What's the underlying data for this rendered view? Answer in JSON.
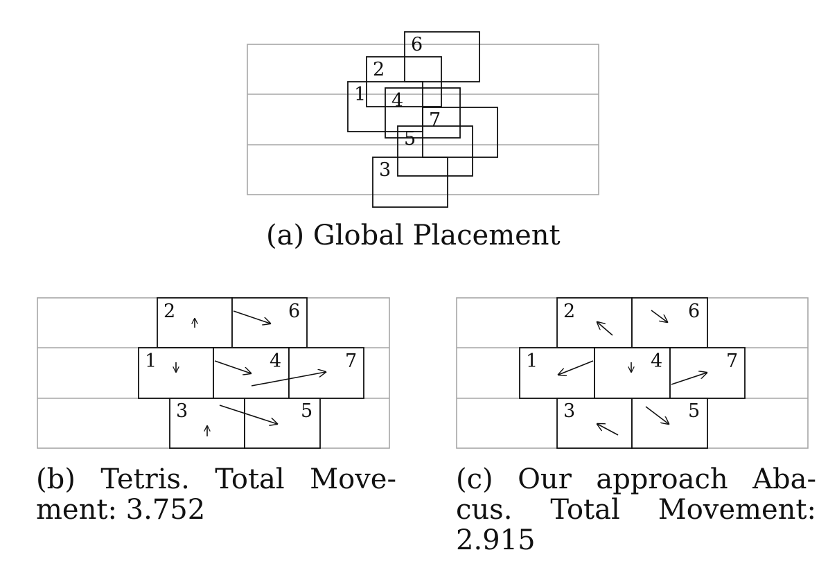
{
  "panel_a": {
    "caption": "(a) Global Placement",
    "cells": [
      {
        "id": "6",
        "label": "6"
      },
      {
        "id": "2",
        "label": "2"
      },
      {
        "id": "1",
        "label": "1"
      },
      {
        "id": "4",
        "label": "4"
      },
      {
        "id": "7",
        "label": "7"
      },
      {
        "id": "5",
        "label": "5"
      },
      {
        "id": "3",
        "label": "3"
      }
    ]
  },
  "panel_b": {
    "caption_line1": [
      "(b)",
      "Tetris.",
      "Total",
      "Move-"
    ],
    "caption_line2": "ment: 3.752",
    "cells": [
      {
        "id": "2",
        "label": "2"
      },
      {
        "id": "6",
        "label": "6"
      },
      {
        "id": "1",
        "label": "1"
      },
      {
        "id": "4",
        "label": "4"
      },
      {
        "id": "7",
        "label": "7"
      },
      {
        "id": "3",
        "label": "3"
      },
      {
        "id": "5",
        "label": "5"
      }
    ]
  },
  "panel_c": {
    "caption_line1": [
      "(c)",
      "Our",
      "approach",
      "Aba-"
    ],
    "caption_line2": [
      "cus.",
      "Total",
      "Movement:"
    ],
    "caption_line3": "2.915",
    "cells": [
      {
        "id": "2",
        "label": "2"
      },
      {
        "id": "6",
        "label": "6"
      },
      {
        "id": "1",
        "label": "1"
      },
      {
        "id": "4",
        "label": "4"
      },
      {
        "id": "7",
        "label": "7"
      },
      {
        "id": "3",
        "label": "3"
      },
      {
        "id": "5",
        "label": "5"
      }
    ]
  },
  "colors": {
    "row_lines": "#a6a6a6",
    "cell_stroke": "#111111",
    "background": "#ffffff"
  }
}
